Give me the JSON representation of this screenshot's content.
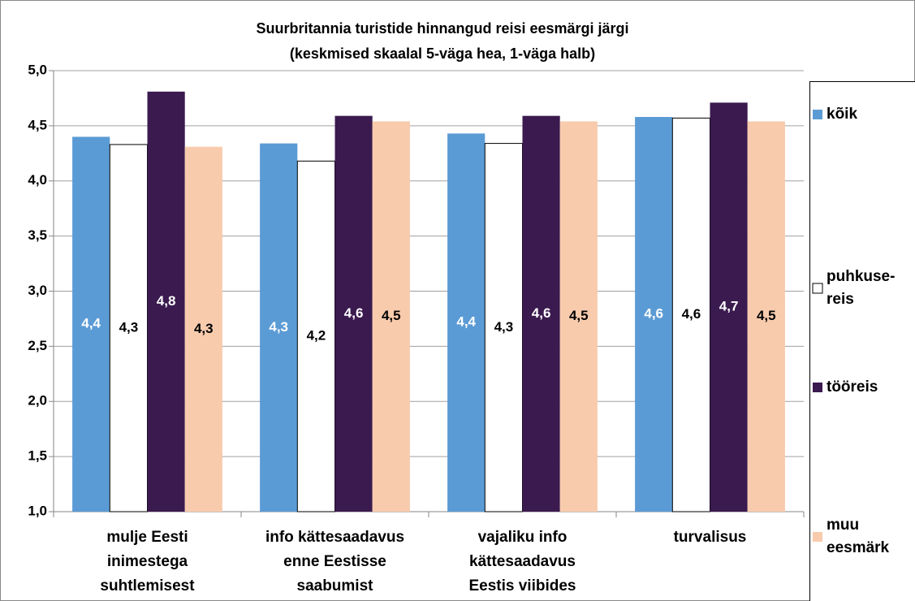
{
  "chart_data": {
    "type": "bar",
    "title": "Suurbritannia turistide hinnangud reisi eesmärgi järgi",
    "subtitle": "(keskmised skaalal 5-väga hea, 1-väga halb)",
    "categories": [
      "mulje Eesti inimestega suhtlemisest",
      "info kättesaadavus enne Eestisse saabumist",
      "vajaliku info kättesaadavus Eestis viibides",
      "turvalisus"
    ],
    "series": [
      {
        "name": "kõik",
        "color": "#5b9bd5",
        "values": [
          4.4,
          4.34,
          4.43,
          4.58
        ],
        "value_labels": [
          "4,4",
          "4,3",
          "4,4",
          "4,6"
        ]
      },
      {
        "name": "puhkuse-reis",
        "color": "#ffffff",
        "values": [
          4.33,
          4.18,
          4.34,
          4.57
        ],
        "value_labels": [
          "4,3",
          "4,2",
          "4,3",
          "4,6"
        ]
      },
      {
        "name": "tööreis",
        "color": "#3b1a4f",
        "values": [
          4.81,
          4.59,
          4.59,
          4.71
        ],
        "value_labels": [
          "4,8",
          "4,6",
          "4,6",
          "4,7"
        ]
      },
      {
        "name": "muu eesmärk",
        "color": "#f8cbad",
        "values": [
          4.31,
          4.54,
          4.54,
          4.54
        ],
        "value_labels": [
          "4,3",
          "4,5",
          "4,5",
          "4,5"
        ]
      }
    ],
    "ylim": [
      1,
      5
    ],
    "yticks": [
      {
        "value": 1,
        "label": "1,0"
      },
      {
        "value": 1.5,
        "label": "1,5"
      },
      {
        "value": 2,
        "label": "2,0"
      },
      {
        "value": 2.5,
        "label": "2,5"
      },
      {
        "value": 3,
        "label": "3,0"
      },
      {
        "value": 3.5,
        "label": "3,5"
      },
      {
        "value": 4,
        "label": "4,0"
      },
      {
        "value": 4.5,
        "label": "4,5"
      },
      {
        "value": 5,
        "label": "5,0"
      }
    ],
    "grid": true
  }
}
